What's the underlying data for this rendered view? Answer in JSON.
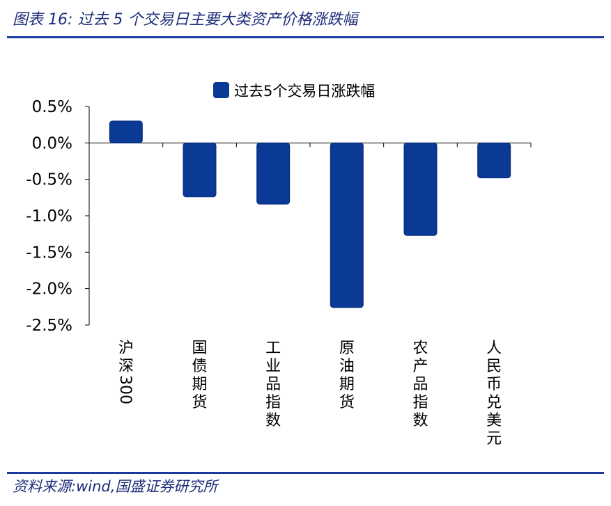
{
  "figure": {
    "title": "图表 16:  过去 5 个交易日主要大类资产价格涨跌幅",
    "source": "资料来源:wind,国盛证券研究所"
  },
  "chart_data": {
    "type": "bar",
    "categories": [
      "沪深300",
      "国债期货",
      "工业品指数",
      "原油期货",
      "农产品指数",
      "人民币兑美元"
    ],
    "series": [
      {
        "name": "过去5个交易日涨跌幅",
        "values": [
          0.3,
          -0.74,
          -0.84,
          -2.26,
          -1.27,
          -0.48
        ]
      }
    ],
    "ylim": [
      -2.5,
      0.5
    ],
    "yticks": [
      0.5,
      0.0,
      -0.5,
      -1.0,
      -1.5,
      -2.0,
      -2.5
    ],
    "ytick_labels": [
      "0.5%",
      "0.0%",
      "-0.5%",
      "-1.0%",
      "-1.5%",
      "-2.0%",
      "-2.5%"
    ],
    "legend_position": "top-center",
    "grid": false,
    "colors": {
      "bar": "#0a3a96",
      "bar_edge": "#042a78"
    }
  }
}
